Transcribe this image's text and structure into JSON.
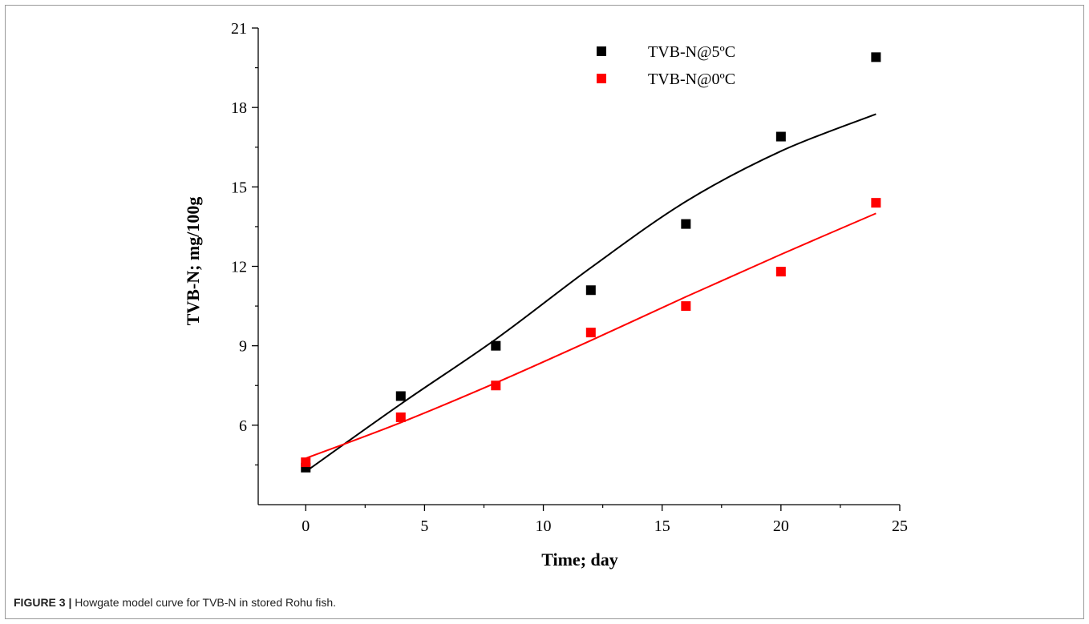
{
  "figure": {
    "caption_label": "FIGURE 3 |",
    "caption_text": "Howgate model curve for TVB-N in stored Rohu fish."
  },
  "chart_data": {
    "type": "scatter",
    "xlabel": "Time; day",
    "ylabel": "TVB-N; mg/100g",
    "xlim": [
      -2,
      25
    ],
    "ylim": [
      3,
      21
    ],
    "xticks": [
      0,
      5,
      10,
      15,
      20,
      25
    ],
    "yticks": [
      6,
      9,
      12,
      15,
      18,
      21
    ],
    "grid": false,
    "legend_position": "top-right",
    "series": [
      {
        "name": "TVB-N@5ºC",
        "color": "#000000",
        "x": [
          0,
          4,
          8,
          12,
          16,
          20,
          24
        ],
        "y": [
          4.4,
          7.1,
          9.0,
          11.1,
          13.6,
          16.9,
          19.9
        ],
        "fit_y": [
          4.25,
          6.8,
          9.25,
          11.95,
          14.45,
          16.35,
          17.75
        ]
      },
      {
        "name": "TVB-N@0ºC",
        "color": "#ff0000",
        "x": [
          0,
          4,
          8,
          12,
          16,
          20,
          24
        ],
        "y": [
          4.6,
          6.3,
          7.5,
          9.5,
          10.5,
          11.8,
          14.4
        ],
        "fit_y": [
          4.75,
          6.1,
          7.6,
          9.2,
          10.85,
          12.45,
          14.0
        ]
      }
    ]
  }
}
